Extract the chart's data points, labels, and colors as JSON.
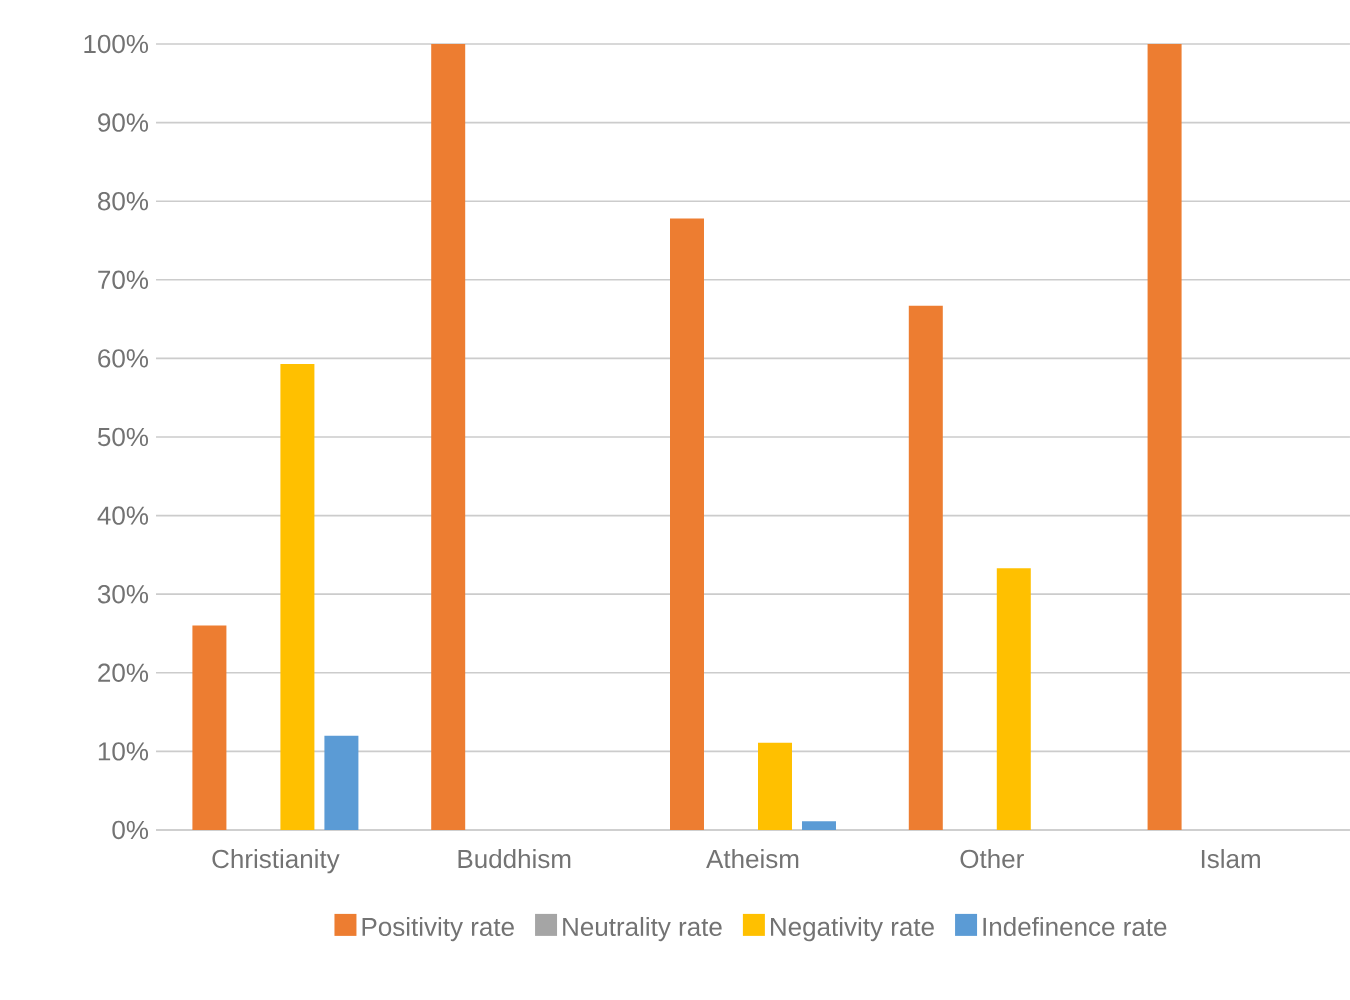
{
  "chart_data": {
    "type": "bar",
    "categories": [
      "Christianity",
      "Buddhism",
      "Atheism",
      "Other",
      "Islam"
    ],
    "series": [
      {
        "name": "Positivity rate",
        "color": "#ed7d31",
        "values": [
          26,
          100,
          77.8,
          66.7,
          100
        ]
      },
      {
        "name": "Neutrality rate",
        "color": "#a5a5a5",
        "values": [
          0,
          0,
          0,
          0,
          0
        ]
      },
      {
        "name": "Negativity rate",
        "color": "#ffc000",
        "values": [
          59.3,
          0,
          11.1,
          33.3,
          0
        ]
      },
      {
        "name": "Indefinence rate",
        "color": "#5b9bd5",
        "values": [
          12,
          0,
          1.1,
          0,
          0
        ]
      }
    ],
    "ylim": [
      0,
      100
    ],
    "yticks": [
      {
        "value": 0,
        "label": "0%"
      },
      {
        "value": 10,
        "label": "10%"
      },
      {
        "value": 20,
        "label": "20%"
      },
      {
        "value": 30,
        "label": "30%"
      },
      {
        "value": 40,
        "label": "40%"
      },
      {
        "value": 50,
        "label": "50%"
      },
      {
        "value": 60,
        "label": "60%"
      },
      {
        "value": 70,
        "label": "70%"
      },
      {
        "value": 80,
        "label": "80%"
      },
      {
        "value": 90,
        "label": "90%"
      },
      {
        "value": 100,
        "label": "100%"
      }
    ],
    "grid": "y",
    "legend": "bottom"
  }
}
